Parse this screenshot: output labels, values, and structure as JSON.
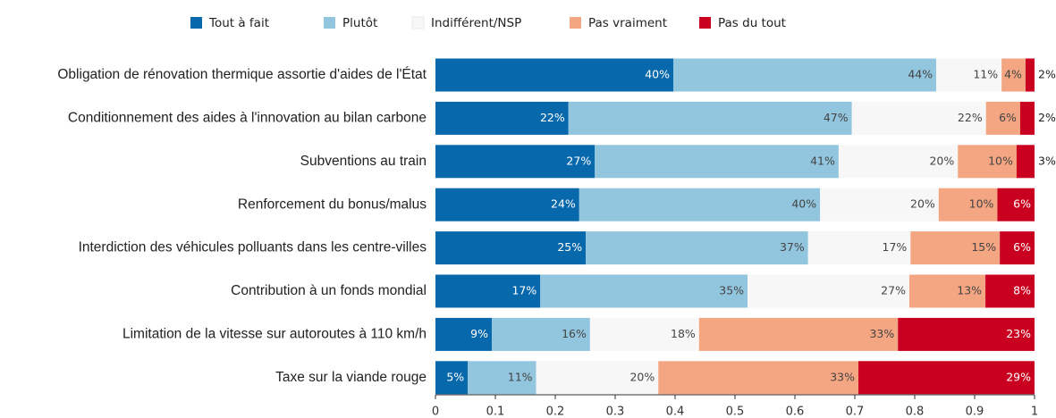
{
  "chart_data": {
    "type": "stacked-barh",
    "categories": [
      "Obligation de rénovation thermique assortie d'aides de l'État",
      "Conditionnement des aides à l'innovation au bilan carbone",
      "Subventions au train",
      "Renforcement du bonus/malus",
      "Interdiction des véhicules polluants dans les centre-villes",
      "Contribution à un fonds mondial",
      "Limitation de la vitesse sur autoroutes à 110 km/h",
      "Taxe sur la viande rouge"
    ],
    "series": [
      {
        "name": "Tout à fait",
        "color": "#0868ac",
        "label_color": "#ffffff",
        "values": [
          0.397,
          0.222,
          0.266,
          0.24,
          0.251,
          0.175,
          0.094,
          0.054
        ],
        "value_labels": [
          "40%",
          "22%",
          "27%",
          "24%",
          "25%",
          "17%",
          "9%",
          "5%"
        ]
      },
      {
        "name": "Plutôt",
        "color": "#92c5de",
        "label_color": "#444444",
        "values": [
          0.439,
          0.473,
          0.407,
          0.402,
          0.371,
          0.346,
          0.164,
          0.114
        ],
        "value_labels": [
          "44%",
          "47%",
          "41%",
          "40%",
          "37%",
          "35%",
          "16%",
          "11%"
        ]
      },
      {
        "name": "Indifférent/NSP",
        "color": "#f7f7f7",
        "label_color": "#444444",
        "values": [
          0.109,
          0.224,
          0.199,
          0.198,
          0.171,
          0.27,
          0.182,
          0.204
        ],
        "value_labels": [
          "11%",
          "22%",
          "20%",
          "20%",
          "17%",
          "27%",
          "18%",
          "20%"
        ]
      },
      {
        "name": "Pas vraiment",
        "color": "#f4a582",
        "label_color": "#444444",
        "values": [
          0.04,
          0.057,
          0.098,
          0.098,
          0.149,
          0.127,
          0.332,
          0.334
        ],
        "value_labels": [
          "4%",
          "6%",
          "10%",
          "10%",
          "15%",
          "13%",
          "33%",
          "33%"
        ]
      },
      {
        "name": "Pas du tout",
        "color": "#ca0020",
        "label_color": "#ffffff",
        "values": [
          0.015,
          0.024,
          0.03,
          0.062,
          0.058,
          0.082,
          0.228,
          0.294
        ],
        "value_labels": [
          "2%",
          "2%",
          "3%",
          "6%",
          "6%",
          "8%",
          "23%",
          "29%"
        ]
      }
    ],
    "xlim": [
      0,
      1
    ],
    "xticks": [
      0,
      0.1,
      0.2,
      0.3,
      0.4,
      0.5,
      0.6,
      0.7,
      0.8,
      0.9,
      1
    ],
    "legend": "top"
  }
}
